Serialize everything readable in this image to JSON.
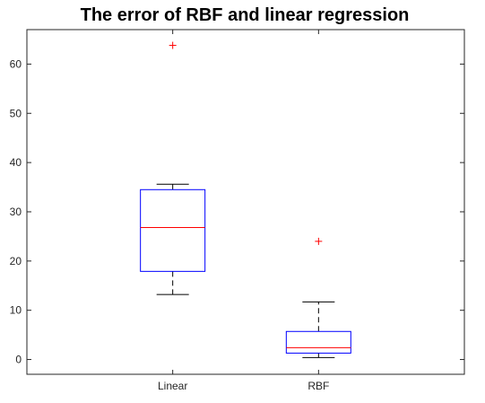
{
  "chart_data": {
    "type": "box",
    "title": "The error of RBF and linear regression",
    "xlabel": "",
    "ylabel": "",
    "categories": [
      "Linear",
      "RBF"
    ],
    "boxes": [
      {
        "category": "Linear",
        "whisker_low": 13.2,
        "q1": 17.9,
        "median": 26.8,
        "q3": 34.5,
        "whisker_high": 35.6,
        "outliers": [
          63.8
        ]
      },
      {
        "category": "RBF",
        "whisker_low": 0.4,
        "q1": 1.3,
        "median": 2.4,
        "q3": 5.7,
        "whisker_high": 11.7,
        "outliers": [
          24.0
        ]
      }
    ],
    "ylim": [
      -3,
      67
    ],
    "yticks": [
      0,
      10,
      20,
      30,
      40,
      50,
      60
    ],
    "grid": false,
    "colors": {
      "box": "#0000ff",
      "median": "#ff0000",
      "whisker": "#000000",
      "outlier": "#ff0000",
      "axes": "#262626"
    }
  }
}
